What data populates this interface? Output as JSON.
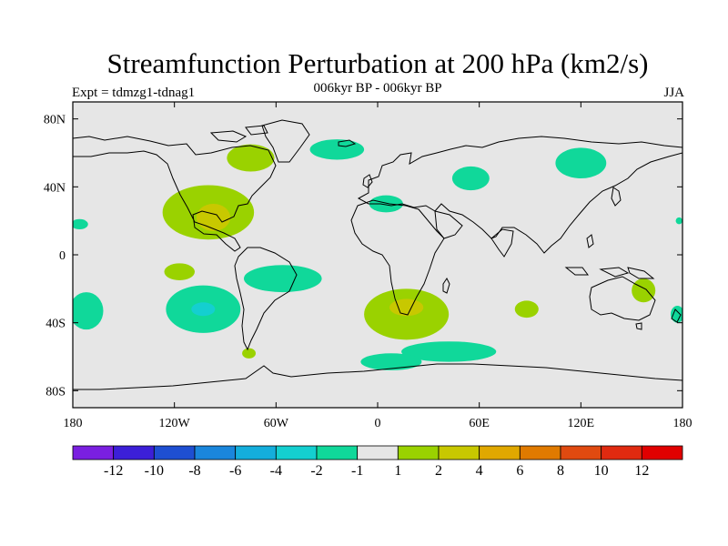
{
  "title": "Streamfunction Perturbation at 200 hPa (km2/s)",
  "subtitle": "006kyr BP - 006kyr BP",
  "experiment": "Expt = tdmzg1-tdnag1",
  "season": "JJA",
  "map": {
    "lon_range": [
      -180,
      180
    ],
    "lat_range": [
      -90,
      90
    ],
    "x_ticks": [
      {
        "lon": -180,
        "label": "180"
      },
      {
        "lon": -120,
        "label": "120W"
      },
      {
        "lon": -60,
        "label": "60W"
      },
      {
        "lon": 0,
        "label": "0"
      },
      {
        "lon": 60,
        "label": "60E"
      },
      {
        "lon": 120,
        "label": "120E"
      },
      {
        "lon": 180,
        "label": "180"
      }
    ],
    "y_ticks": [
      {
        "lat": 80,
        "label": "80N"
      },
      {
        "lat": 40,
        "label": "40N"
      },
      {
        "lat": 0,
        "label": "0"
      },
      {
        "lat": -40,
        "label": "40S"
      },
      {
        "lat": -80,
        "label": "80S"
      }
    ],
    "background_color": "#e6e6e6"
  },
  "colorbar": {
    "colors": [
      "#7a1fe0",
      "#3c1fd8",
      "#1e4fd2",
      "#1a86dc",
      "#14aedc",
      "#14cfd0",
      "#10d89a",
      "#e6e6e6",
      "#9ad200",
      "#c8c800",
      "#e0a800",
      "#e07a00",
      "#e04a10",
      "#e02a10",
      "#e00000"
    ],
    "labels": [
      "-12",
      "-10",
      "-8",
      "-6",
      "-4",
      "-2",
      "-1",
      "1",
      "2",
      "4",
      "6",
      "8",
      "10",
      "12"
    ]
  },
  "anomalies": [
    {
      "lon": -100,
      "lat": 25,
      "rx": 27,
      "ry": 16,
      "level": 8
    },
    {
      "lon": -97,
      "lat": 22,
      "rx": 10,
      "ry": 8,
      "level": 9
    },
    {
      "lon": -117,
      "lat": -10,
      "rx": 9,
      "ry": 5,
      "level": 8
    },
    {
      "lon": -75,
      "lat": 57,
      "rx": 14,
      "ry": 8,
      "level": 8
    },
    {
      "lon": -176,
      "lat": 18,
      "rx": 5,
      "ry": 3,
      "level": 6
    },
    {
      "lon": -172,
      "lat": -33,
      "rx": 10,
      "ry": 11,
      "level": 6
    },
    {
      "lon": -103,
      "lat": -32,
      "rx": 22,
      "ry": 14,
      "level": 6
    },
    {
      "lon": -103,
      "lat": -32,
      "rx": 7,
      "ry": 4,
      "level": 5
    },
    {
      "lon": -56,
      "lat": -14,
      "rx": 23,
      "ry": 8,
      "level": 6
    },
    {
      "lon": -76,
      "lat": -58,
      "rx": 4,
      "ry": 3,
      "level": 8
    },
    {
      "lon": -24,
      "lat": 62,
      "rx": 16,
      "ry": 6,
      "level": 6
    },
    {
      "lon": 5,
      "lat": 30,
      "rx": 10,
      "ry": 5,
      "level": 6
    },
    {
      "lon": 55,
      "lat": 45,
      "rx": 11,
      "ry": 7,
      "level": 6
    },
    {
      "lon": 120,
      "lat": 54,
      "rx": 15,
      "ry": 9,
      "level": 6
    },
    {
      "lon": 17,
      "lat": -35,
      "rx": 25,
      "ry": 15,
      "level": 8
    },
    {
      "lon": 17,
      "lat": -31,
      "rx": 10,
      "ry": 5,
      "level": 9
    },
    {
      "lon": 88,
      "lat": -32,
      "rx": 7,
      "ry": 5,
      "level": 8
    },
    {
      "lon": 157,
      "lat": -21,
      "rx": 7,
      "ry": 7,
      "level": 8
    },
    {
      "lon": 177,
      "lat": -35,
      "rx": 4,
      "ry": 5,
      "level": 6
    },
    {
      "lon": -180,
      "lat": -35,
      "rx": 3,
      "ry": 4,
      "level": 6
    },
    {
      "lon": 178,
      "lat": 20,
      "rx": 2,
      "ry": 2,
      "level": 6
    },
    {
      "lon": 42,
      "lat": -57,
      "rx": 28,
      "ry": 6,
      "level": 6
    },
    {
      "lon": 8,
      "lat": -63,
      "rx": 18,
      "ry": 5,
      "level": 6
    }
  ]
}
